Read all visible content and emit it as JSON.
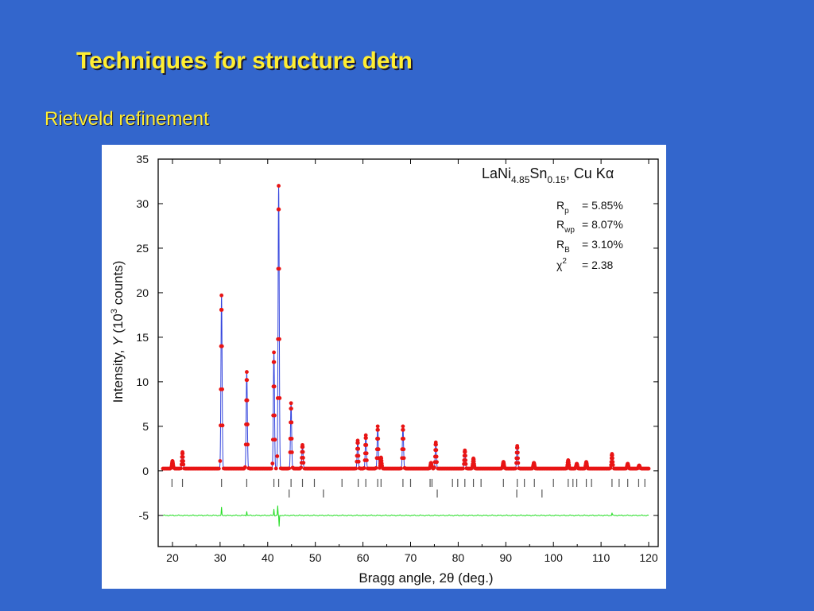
{
  "slide": {
    "title": "Techniques for structure detn",
    "subtitle": "Rietveld refinement"
  },
  "colors": {
    "background": "#3366cc",
    "title_text": "#ffee33",
    "observed_points": "#e81414",
    "calculated_line": "#3344dd",
    "difference_line": "#22dd22",
    "bragg_ticks": "#555555"
  },
  "chart_data": {
    "type": "line",
    "xlabel_parts": [
      "Bragg angle, 2",
      "θ",
      " (deg.)"
    ],
    "ylabel_parts": [
      "Intensity,  ",
      "Y",
      " (10",
      "3",
      " counts)"
    ],
    "xlim": [
      17,
      122
    ],
    "ylim": [
      -8.5,
      35
    ],
    "x_ticks": [
      20,
      30,
      40,
      50,
      60,
      70,
      80,
      90,
      100,
      110,
      120
    ],
    "y_ticks": [
      35,
      30,
      25,
      20,
      15,
      10,
      5,
      0,
      -5
    ],
    "grid": false,
    "annotation": {
      "compound_parts": [
        {
          "text": "LaNi",
          "sub": false
        },
        {
          "text": "4.85",
          "sub": true
        },
        {
          "text": "Sn",
          "sub": false
        },
        {
          "text": "0.15",
          "sub": true
        },
        {
          "text": ", Cu K",
          "sub": false
        },
        {
          "text": "α",
          "sub": false
        }
      ],
      "stats": [
        {
          "symbol": "R",
          "sub": "p",
          "sup": "",
          "value": "= 5.85%"
        },
        {
          "symbol": "R",
          "sub": "wp",
          "sup": "",
          "value": "= 8.07%"
        },
        {
          "symbol": "R",
          "sub": "B",
          "sup": "",
          "value": "= 3.10%"
        },
        {
          "symbol": "χ",
          "sub": "",
          "sup": "2",
          "value": "= 2.38"
        }
      ]
    },
    "baseline": 0.25,
    "x_range": [
      18,
      120
    ],
    "peaks": [
      {
        "x": 20.0,
        "y": 1.1
      },
      {
        "x": 22.1,
        "y": 2.1
      },
      {
        "x": 30.3,
        "y": 19.7
      },
      {
        "x": 35.6,
        "y": 11.1
      },
      {
        "x": 41.3,
        "y": 13.3
      },
      {
        "x": 42.3,
        "y": 32.0
      },
      {
        "x": 44.9,
        "y": 7.6
      },
      {
        "x": 47.3,
        "y": 2.9
      },
      {
        "x": 58.9,
        "y": 3.4
      },
      {
        "x": 60.6,
        "y": 4.0
      },
      {
        "x": 63.1,
        "y": 5.0
      },
      {
        "x": 63.8,
        "y": 1.5
      },
      {
        "x": 68.4,
        "y": 5.0
      },
      {
        "x": 74.3,
        "y": 0.9
      },
      {
        "x": 75.3,
        "y": 3.2
      },
      {
        "x": 81.4,
        "y": 2.3
      },
      {
        "x": 83.2,
        "y": 1.4
      },
      {
        "x": 89.5,
        "y": 1.0
      },
      {
        "x": 92.4,
        "y": 2.8
      },
      {
        "x": 95.9,
        "y": 0.9
      },
      {
        "x": 103.1,
        "y": 1.2
      },
      {
        "x": 104.9,
        "y": 0.8
      },
      {
        "x": 106.9,
        "y": 1.0
      },
      {
        "x": 112.3,
        "y": 1.9
      },
      {
        "x": 115.6,
        "y": 0.8
      },
      {
        "x": 118.0,
        "y": 0.6
      }
    ],
    "bragg_reflections_phase1": [
      19.9,
      22.1,
      30.3,
      35.6,
      41.3,
      42.3,
      44.9,
      47.3,
      49.8,
      55.6,
      59.0,
      60.6,
      63.1,
      63.8,
      68.4,
      70.0,
      74.1,
      74.5,
      78.8,
      79.9,
      81.4,
      83.2,
      84.8,
      89.5,
      92.4,
      93.9,
      96.0,
      100.0,
      103.1,
      104.1,
      104.9,
      106.9,
      108.0,
      112.3,
      113.8,
      115.6,
      117.9,
      119.2
    ],
    "bragg_reflections_phase2": [
      44.5,
      51.7,
      75.6,
      92.3,
      97.6
    ],
    "difference_level": -5.0,
    "difference_spikes": [
      {
        "x": 30.3,
        "y": 0.9
      },
      {
        "x": 35.6,
        "y": 0.5
      },
      {
        "x": 41.3,
        "y": 0.7
      },
      {
        "x": 42.1,
        "y": 1.1
      },
      {
        "x": 42.4,
        "y": -1.3
      },
      {
        "x": 112.3,
        "y": 0.3
      }
    ]
  }
}
